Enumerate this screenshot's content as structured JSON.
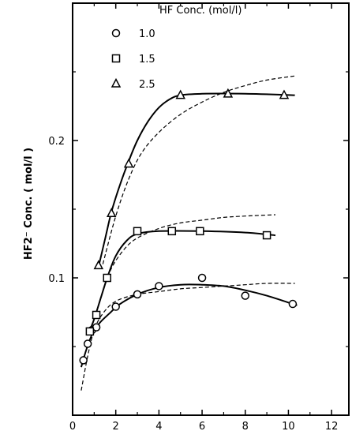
{
  "chart_data": {
    "type": "scatter",
    "title": "",
    "xlabel": "",
    "ylabel": "HF2⁻ Conc. ( mol/l )",
    "xlim": [
      0,
      12.8
    ],
    "ylim": [
      0,
      0.3
    ],
    "x_ticks": [
      0,
      2,
      4,
      6,
      8,
      10,
      12
    ],
    "y_ticks": [
      0.1,
      0.2
    ],
    "grid": false,
    "legend": {
      "title": "HF Conc.  (mol/l)",
      "placement": "top-left",
      "entries": [
        {
          "label": "1.0",
          "marker": "circle"
        },
        {
          "label": "1.5",
          "marker": "square"
        },
        {
          "label": "2.5",
          "marker": "triangle"
        }
      ]
    },
    "series": [
      {
        "name": "1.0",
        "marker": "circle",
        "points": [
          [
            0.5,
            0.04
          ],
          [
            0.7,
            0.052
          ],
          [
            0.9,
            0.062
          ],
          [
            1.1,
            0.064
          ],
          [
            2.0,
            0.079
          ],
          [
            3.0,
            0.088
          ],
          [
            4.0,
            0.094
          ],
          [
            6.0,
            0.1
          ],
          [
            8.0,
            0.087
          ],
          [
            10.2,
            0.081
          ]
        ],
        "fit_solid": [
          [
            0.4,
            0.035
          ],
          [
            0.6,
            0.046
          ],
          [
            0.8,
            0.055
          ],
          [
            1.0,
            0.062
          ],
          [
            1.3,
            0.068
          ],
          [
            1.7,
            0.074
          ],
          [
            2.2,
            0.081
          ],
          [
            3.0,
            0.088
          ],
          [
            4.0,
            0.093
          ],
          [
            5.0,
            0.095
          ],
          [
            6.0,
            0.095
          ],
          [
            7.0,
            0.094
          ],
          [
            8.0,
            0.091
          ],
          [
            9.0,
            0.087
          ],
          [
            10.0,
            0.082
          ],
          [
            10.4,
            0.08
          ]
        ],
        "fit_dashed": [
          [
            0.4,
            0.018
          ],
          [
            0.7,
            0.043
          ],
          [
            1.0,
            0.062
          ],
          [
            1.4,
            0.074
          ],
          [
            2.0,
            0.083
          ],
          [
            3.0,
            0.088
          ],
          [
            4.0,
            0.09
          ],
          [
            5.0,
            0.092
          ],
          [
            6.0,
            0.093
          ],
          [
            7.0,
            0.094
          ],
          [
            8.0,
            0.095
          ],
          [
            9.0,
            0.096
          ],
          [
            10.3,
            0.096
          ]
        ]
      },
      {
        "name": "1.5",
        "marker": "square",
        "points": [
          [
            0.8,
            0.061
          ],
          [
            1.1,
            0.073
          ],
          [
            1.6,
            0.1
          ],
          [
            3.0,
            0.134
          ],
          [
            4.6,
            0.134
          ],
          [
            5.9,
            0.134
          ],
          [
            9.0,
            0.131
          ]
        ],
        "fit_solid": [
          [
            0.8,
            0.062
          ],
          [
            1.0,
            0.07
          ],
          [
            1.3,
            0.085
          ],
          [
            1.6,
            0.1
          ],
          [
            2.0,
            0.116
          ],
          [
            2.5,
            0.127
          ],
          [
            3.0,
            0.132
          ],
          [
            4.0,
            0.134
          ],
          [
            6.0,
            0.134
          ],
          [
            8.0,
            0.133
          ],
          [
            9.4,
            0.131
          ]
        ],
        "fit_dashed": [
          [
            1.0,
            0.07
          ],
          [
            1.4,
            0.09
          ],
          [
            1.8,
            0.107
          ],
          [
            2.4,
            0.121
          ],
          [
            3.0,
            0.129
          ],
          [
            4.0,
            0.136
          ],
          [
            5.0,
            0.14
          ],
          [
            6.0,
            0.142
          ],
          [
            7.0,
            0.144
          ],
          [
            8.0,
            0.145
          ],
          [
            9.4,
            0.146
          ]
        ]
      },
      {
        "name": "2.5",
        "marker": "triangle",
        "points": [
          [
            1.2,
            0.109
          ],
          [
            1.8,
            0.147
          ],
          [
            2.6,
            0.183
          ],
          [
            5.0,
            0.233
          ],
          [
            7.2,
            0.234
          ],
          [
            9.8,
            0.233
          ]
        ],
        "fit_solid": [
          [
            1.2,
            0.108
          ],
          [
            1.5,
            0.128
          ],
          [
            1.8,
            0.148
          ],
          [
            2.2,
            0.168
          ],
          [
            2.6,
            0.185
          ],
          [
            3.0,
            0.2
          ],
          [
            3.5,
            0.214
          ],
          [
            4.0,
            0.224
          ],
          [
            4.5,
            0.23
          ],
          [
            5.0,
            0.233
          ],
          [
            6.0,
            0.234
          ],
          [
            8.0,
            0.234
          ],
          [
            10.3,
            0.233
          ]
        ],
        "fit_dashed": [
          [
            1.4,
            0.11
          ],
          [
            2.0,
            0.145
          ],
          [
            2.6,
            0.172
          ],
          [
            3.2,
            0.191
          ],
          [
            4.0,
            0.206
          ],
          [
            5.0,
            0.219
          ],
          [
            6.0,
            0.228
          ],
          [
            7.0,
            0.235
          ],
          [
            8.0,
            0.24
          ],
          [
            9.0,
            0.244
          ],
          [
            10.3,
            0.247
          ]
        ]
      }
    ]
  }
}
